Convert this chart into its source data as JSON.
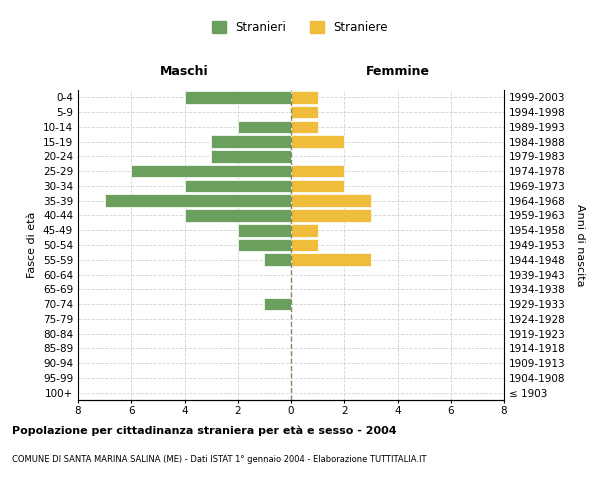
{
  "age_groups": [
    "100+",
    "95-99",
    "90-94",
    "85-89",
    "80-84",
    "75-79",
    "70-74",
    "65-69",
    "60-64",
    "55-59",
    "50-54",
    "45-49",
    "40-44",
    "35-39",
    "30-34",
    "25-29",
    "20-24",
    "15-19",
    "10-14",
    "5-9",
    "0-4"
  ],
  "birth_years": [
    "≤ 1903",
    "1904-1908",
    "1909-1913",
    "1914-1918",
    "1919-1923",
    "1924-1928",
    "1929-1933",
    "1934-1938",
    "1939-1943",
    "1944-1948",
    "1949-1953",
    "1954-1958",
    "1959-1963",
    "1964-1968",
    "1969-1973",
    "1974-1978",
    "1979-1983",
    "1984-1988",
    "1989-1993",
    "1994-1998",
    "1999-2003"
  ],
  "stranieri": [
    0,
    0,
    0,
    0,
    0,
    0,
    1,
    0,
    0,
    1,
    2,
    2,
    4,
    7,
    4,
    6,
    3,
    3,
    2,
    0,
    4
  ],
  "straniere": [
    0,
    0,
    0,
    0,
    0,
    0,
    0,
    0,
    0,
    3,
    1,
    1,
    3,
    3,
    2,
    2,
    0,
    2,
    1,
    1,
    1
  ],
  "color_stranieri": "#6a9f5e",
  "color_straniere": "#f0bc3c",
  "xlim": 8,
  "title_main": "Popolazione per cittadinanza straniera per età e sesso - 2004",
  "title_sub": "COMUNE DI SANTA MARINA SALINA (ME) - Dati ISTAT 1° gennaio 2004 - Elaborazione TUTTITALIA.IT",
  "xlabel_left": "Maschi",
  "xlabel_right": "Femmine",
  "ylabel_left": "Fasce di età",
  "ylabel_right": "Anni di nascita",
  "legend_stranieri": "Stranieri",
  "legend_straniere": "Straniere",
  "background_color": "#ffffff",
  "grid_color": "#cccccc",
  "bar_height": 0.85
}
